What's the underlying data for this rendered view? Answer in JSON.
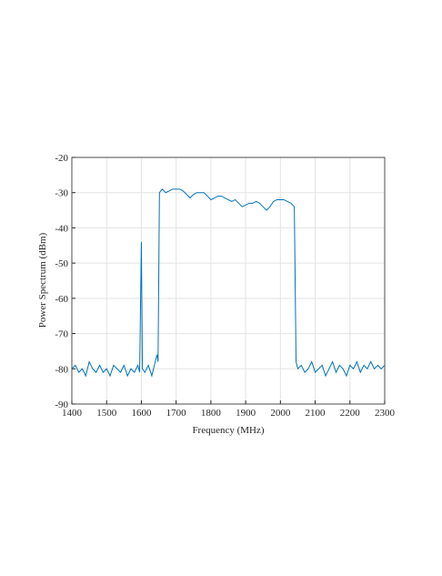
{
  "chart_data": {
    "type": "line",
    "x_label": "Frequency (MHz)",
    "y_label": "Power Spectrum (dBm)",
    "xlim": [
      1400,
      2300
    ],
    "ylim": [
      -90,
      -20
    ],
    "xticks": [
      1400,
      1500,
      1600,
      1700,
      1800,
      1900,
      2000,
      2100,
      2200,
      2300
    ],
    "yticks": [
      -20,
      -30,
      -40,
      -50,
      -60,
      -70,
      -80,
      -90
    ],
    "grid": true,
    "x": [
      1400,
      1410,
      1420,
      1430,
      1440,
      1450,
      1460,
      1470,
      1480,
      1490,
      1500,
      1510,
      1520,
      1530,
      1540,
      1550,
      1560,
      1570,
      1580,
      1590,
      1595,
      1600,
      1603,
      1610,
      1620,
      1630,
      1640,
      1645,
      1648,
      1652,
      1660,
      1670,
      1680,
      1690,
      1700,
      1710,
      1720,
      1730,
      1740,
      1750,
      1760,
      1770,
      1780,
      1790,
      1800,
      1810,
      1820,
      1830,
      1840,
      1850,
      1860,
      1870,
      1880,
      1890,
      1900,
      1910,
      1920,
      1930,
      1940,
      1950,
      1960,
      1970,
      1980,
      1990,
      2000,
      2010,
      2020,
      2030,
      2040,
      2045,
      2050,
      2060,
      2070,
      2080,
      2090,
      2100,
      2110,
      2120,
      2130,
      2140,
      2150,
      2160,
      2170,
      2180,
      2190,
      2200,
      2210,
      2220,
      2230,
      2240,
      2250,
      2260,
      2270,
      2280,
      2290,
      2300
    ],
    "series": [
      {
        "color": "#0072bd",
        "values": [
          -80,
          -79,
          -81,
          -80,
          -82,
          -78,
          -80,
          -81,
          -79,
          -81,
          -80,
          -82,
          -79,
          -80,
          -81,
          -79,
          -82,
          -80,
          -81,
          -79,
          -81,
          -44,
          -80,
          -81,
          -79,
          -82,
          -78,
          -76,
          -78,
          -30,
          -29,
          -30,
          -29.5,
          -29,
          -29,
          -29,
          -29.5,
          -30.5,
          -31.5,
          -30.5,
          -30,
          -30,
          -30,
          -31,
          -32,
          -31.5,
          -31,
          -31,
          -31.5,
          -32,
          -32.5,
          -32,
          -33,
          -34,
          -33.5,
          -33,
          -33,
          -32.5,
          -33,
          -34,
          -35,
          -34,
          -32.5,
          -32,
          -32,
          -32,
          -32.5,
          -33,
          -34,
          -78,
          -80,
          -79,
          -81,
          -80,
          -78,
          -81,
          -80,
          -79,
          -82,
          -80,
          -78,
          -81,
          -79,
          -80,
          -82,
          -79,
          -80,
          -78,
          -81,
          -79,
          -80,
          -78,
          -80,
          -79,
          -80,
          -79
        ]
      }
    ]
  }
}
